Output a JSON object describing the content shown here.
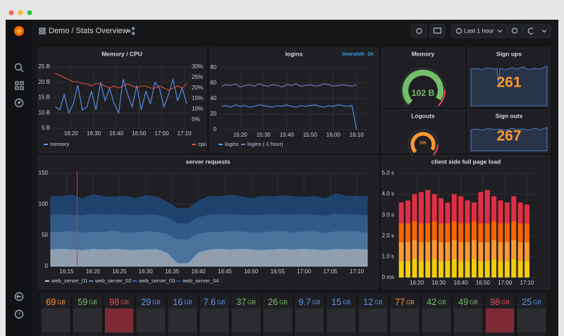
{
  "header": {
    "title": "Demo / Stats Overview",
    "time_range": "Last 1 hour"
  },
  "panels": {
    "memory_cpu": {
      "type": "line",
      "title": "Memory / CPU",
      "grid": true,
      "xlim": [
        972,
        1032
      ],
      "xticks": [
        {
          "value": 980,
          "label": "16:20"
        },
        {
          "value": 990,
          "label": "16:30"
        },
        {
          "value": 1000,
          "label": "16:40"
        },
        {
          "value": 1010,
          "label": "16:50"
        },
        {
          "value": 1020,
          "label": "17:00"
        },
        {
          "value": 1030,
          "label": "17:10"
        }
      ],
      "ylim": [
        5,
        25
      ],
      "yticks": [
        {
          "value": 5,
          "label": "5 B"
        },
        {
          "value": 10,
          "label": "10 B"
        },
        {
          "value": 15,
          "label": "15 B"
        },
        {
          "value": 20,
          "label": "20 B"
        },
        {
          "value": 25,
          "label": "25 B"
        }
      ],
      "y2lim": [
        1,
        30
      ],
      "y2ticks": [
        {
          "value": 5,
          "label": "5%"
        },
        {
          "value": 10,
          "label": "10%"
        },
        {
          "value": 15,
          "label": "15%"
        },
        {
          "value": 20,
          "label": "20%"
        },
        {
          "value": 25,
          "label": "25%"
        },
        {
          "value": 30,
          "label": "30%"
        }
      ],
      "x": [
        973,
        975,
        977,
        979,
        981,
        983,
        985,
        987,
        989,
        991,
        993,
        995,
        997,
        999,
        1001,
        1003,
        1005,
        1007,
        1009,
        1011,
        1013,
        1015,
        1017,
        1019,
        1021,
        1023,
        1025,
        1027,
        1029,
        1031
      ],
      "series": [
        {
          "name": "memory",
          "color": "#5794F2",
          "values": [
            12,
            11,
            16,
            10,
            13,
            19,
            11,
            12,
            17,
            11,
            20,
            14,
            18,
            13,
            10,
            21,
            16,
            12,
            19,
            11,
            17,
            13,
            20,
            18,
            12,
            16,
            21,
            14,
            18,
            13
          ]
        },
        {
          "name": "cpu",
          "color": "#E24D42",
          "axis": "y2",
          "values": [
            27,
            26,
            25,
            24,
            23,
            23,
            22,
            22,
            21,
            22,
            22,
            21,
            20,
            21,
            20,
            21,
            22,
            21,
            20,
            21,
            21,
            20,
            20,
            21,
            20,
            19,
            20,
            21,
            20,
            22
          ]
        }
      ]
    },
    "logins": {
      "type": "line",
      "title": "logins",
      "subtitle": "timeshift -1h",
      "grid": true,
      "xlim": [
        911,
        974
      ],
      "xticks": [
        {
          "value": 920,
          "label": "15:20"
        },
        {
          "value": 930,
          "label": "15:30"
        },
        {
          "value": 940,
          "label": "15:40"
        },
        {
          "value": 950,
          "label": "15:50"
        },
        {
          "value": 960,
          "label": "16:00"
        },
        {
          "value": 970,
          "label": "16:10"
        }
      ],
      "ylim": [
        0,
        80
      ],
      "yticks": [
        0,
        20,
        40,
        60,
        80
      ],
      "x": [
        912,
        914,
        916,
        918,
        920,
        922,
        924,
        926,
        928,
        930,
        932,
        934,
        936,
        938,
        940,
        942,
        944,
        946,
        948,
        950,
        952,
        954,
        956,
        958,
        960,
        962,
        964,
        966,
        968,
        970
      ],
      "series": [
        {
          "name": "logins",
          "color": "#5794F2",
          "values": [
            30,
            31,
            29,
            32,
            30,
            31,
            29,
            30,
            32,
            31,
            30,
            29,
            31,
            30,
            32,
            30,
            29,
            31,
            30,
            31,
            32,
            30,
            29,
            31,
            30,
            32,
            31,
            30,
            31,
            0
          ]
        },
        {
          "name": "logins (-1 hour)",
          "color": "#8F6FC4",
          "values": [
            56,
            58,
            57,
            59,
            55,
            57,
            58,
            56,
            59,
            57,
            56,
            58,
            57,
            55,
            58,
            57,
            59,
            56,
            57,
            58,
            56,
            57,
            59,
            58,
            56,
            57,
            58,
            57,
            56,
            58
          ]
        }
      ]
    },
    "memory": {
      "type": "gauge",
      "title": "Memory",
      "value": 102,
      "value_label": "102 B",
      "color": "#73BF69"
    },
    "sign_ups": {
      "type": "stat",
      "title": "Sign ups",
      "value": 261,
      "color": "#FF9830"
    },
    "logouts": {
      "type": "gauge",
      "title": "Logouts",
      "value": 205,
      "value_label": "205",
      "color": "#FF9830"
    },
    "sign_outs": {
      "type": "stat",
      "title": "Sign outs",
      "value": 267,
      "color": "#FF9830"
    },
    "server_requests": {
      "type": "area_stacked",
      "title": "server requests",
      "grid": true,
      "xlim": [
        972,
        1032
      ],
      "xticks": [
        {
          "value": 975,
          "label": "16:15"
        },
        {
          "value": 980,
          "label": "16:20"
        },
        {
          "value": 985,
          "label": "16:25"
        },
        {
          "value": 990,
          "label": "16:30"
        },
        {
          "value": 995,
          "label": "16:35"
        },
        {
          "value": 1000,
          "label": "16:40"
        },
        {
          "value": 1005,
          "label": "16:45"
        },
        {
          "value": 1010,
          "label": "16:50"
        },
        {
          "value": 1015,
          "label": "16:55"
        },
        {
          "value": 1020,
          "label": "17:00"
        },
        {
          "value": 1025,
          "label": "17:05"
        },
        {
          "value": 1030,
          "label": "17:10"
        }
      ],
      "ylim": [
        0,
        150
      ],
      "yticks": [
        0,
        50,
        100,
        150
      ],
      "annotations": [
        {
          "x": 977,
          "color": "#E02F44"
        }
      ],
      "x": [
        972,
        974,
        976,
        978,
        980,
        982,
        984,
        986,
        988,
        990,
        992,
        994,
        996,
        998,
        1000,
        1002,
        1004,
        1006,
        1008,
        1010,
        1012,
        1014,
        1016,
        1018,
        1020,
        1022,
        1024,
        1026,
        1028,
        1030,
        1032
      ],
      "series": [
        {
          "name": "web_server_01",
          "color": "#B7C9DD",
          "values": [
            27,
            28,
            27,
            26,
            28,
            27,
            28,
            27,
            26,
            27,
            28,
            22,
            5,
            5,
            22,
            27,
            28,
            27,
            28,
            27,
            26,
            27,
            28,
            27,
            28,
            27,
            26,
            28,
            27,
            28,
            27
          ]
        },
        {
          "name": "web_server_02",
          "color": "#5A8FC4",
          "values": [
            28,
            27,
            29,
            28,
            27,
            28,
            29,
            27,
            28,
            29,
            27,
            30,
            38,
            38,
            30,
            28,
            27,
            29,
            28,
            27,
            28,
            29,
            28,
            27,
            28,
            29,
            27,
            28,
            29,
            28,
            27
          ]
        },
        {
          "name": "web_server_03",
          "color": "#3A6FA8",
          "values": [
            28,
            29,
            27,
            28,
            30,
            28,
            27,
            29,
            28,
            27,
            28,
            27,
            26,
            26,
            27,
            28,
            29,
            28,
            27,
            28,
            29,
            28,
            27,
            29,
            28,
            27,
            28,
            29,
            28,
            27,
            28
          ]
        },
        {
          "name": "web_server_04",
          "color": "#1F4F85",
          "values": [
            30,
            28,
            32,
            27,
            31,
            29,
            28,
            30,
            27,
            31,
            29,
            25,
            24,
            24,
            26,
            30,
            28,
            31,
            29,
            27,
            30,
            28,
            31,
            29,
            27,
            30,
            28,
            32,
            29,
            30,
            31
          ]
        }
      ]
    },
    "page_load": {
      "type": "bar_stacked",
      "title": "client side full page load",
      "grid": true,
      "xlim": [
        971,
        1034
      ],
      "xticks": [
        {
          "value": 980,
          "label": "16:20"
        },
        {
          "value": 990,
          "label": "16:30"
        },
        {
          "value": 1000,
          "label": "16:40"
        },
        {
          "value": 1010,
          "label": "16:50"
        },
        {
          "value": 1020,
          "label": "17:00"
        },
        {
          "value": 1030,
          "label": "17:10"
        }
      ],
      "ylim": [
        0,
        5
      ],
      "yticks": [
        {
          "value": 0,
          "label": "0 ms"
        },
        {
          "value": 1,
          "label": "1.0 s"
        },
        {
          "value": 2,
          "label": "2.0 s"
        },
        {
          "value": 3,
          "label": "3.0 s"
        },
        {
          "value": 4,
          "label": "4.0 s"
        },
        {
          "value": 5,
          "label": "5.0 s"
        }
      ],
      "x": [
        973,
        976,
        979,
        982,
        985,
        988,
        991,
        994,
        997,
        1000,
        1003,
        1006,
        1009,
        1012,
        1015,
        1018,
        1021,
        1024,
        1027,
        1030
      ],
      "series": [
        {
          "color": "#F2CC0C",
          "values": [
            0.8,
            0.8,
            0.9,
            0.8,
            0.8,
            0.9,
            0.8,
            0.8,
            0.9,
            0.8,
            0.8,
            0.9,
            0.8,
            0.8,
            0.9,
            0.8,
            0.8,
            0.9,
            0.8,
            0.8
          ]
        },
        {
          "color": "#FF9830",
          "values": [
            0.9,
            0.9,
            0.9,
            0.9,
            0.9,
            0.9,
            0.9,
            0.9,
            0.9,
            0.9,
            0.9,
            0.9,
            0.9,
            0.9,
            0.9,
            0.9,
            0.9,
            0.9,
            0.9,
            0.9
          ]
        },
        {
          "color": "#FA6400",
          "values": [
            0.9,
            0.9,
            0.9,
            0.9,
            0.9,
            0.9,
            0.9,
            0.9,
            0.9,
            0.9,
            0.9,
            0.9,
            0.9,
            0.9,
            0.9,
            0.9,
            0.9,
            0.9,
            0.9,
            0.9
          ]
        },
        {
          "color": "#E02F44",
          "values": [
            1.0,
            1.1,
            1.3,
            1.5,
            1.6,
            1.3,
            1.2,
            1.0,
            1.3,
            1.3,
            1.1,
            0.9,
            1.5,
            1.6,
            1.2,
            1.1,
            1.0,
            1.2,
            1.0,
            0.9
          ]
        }
      ]
    }
  },
  "stats": [
    {
      "value": 69,
      "unit": "GB",
      "color": "#FF9830",
      "background": "#2b2c30"
    },
    {
      "value": 59,
      "unit": "GB",
      "color": "#73BF69",
      "background": "#2b2c30"
    },
    {
      "value": 98,
      "unit": "GB",
      "color": "#F2495C",
      "background": "#7e2a36"
    },
    {
      "value": 29,
      "unit": "GB",
      "color": "#5794F2",
      "background": "#2b2c30"
    },
    {
      "value": 16,
      "unit": "GB",
      "color": "#5794F2",
      "background": "#2b2c30"
    },
    {
      "value": 7.6,
      "unit": "GB",
      "color": "#5794F2",
      "background": "#2b2c30"
    },
    {
      "value": 37,
      "unit": "GB",
      "color": "#73BF69",
      "background": "#2b2c30"
    },
    {
      "value": 26,
      "unit": "GB",
      "color": "#73BF69",
      "background": "#2b2c30"
    },
    {
      "value": 9.7,
      "unit": "GB",
      "color": "#5794F2",
      "background": "#2b2c30"
    },
    {
      "value": 15,
      "unit": "GB",
      "color": "#5794F2",
      "background": "#2b2c30"
    },
    {
      "value": 12,
      "unit": "GB",
      "color": "#5794F2",
      "background": "#2b2c30"
    },
    {
      "value": 77,
      "unit": "GB",
      "color": "#FF9830",
      "background": "#2b2c30"
    },
    {
      "value": 42,
      "unit": "GB",
      "color": "#73BF69",
      "background": "#2b2c30"
    },
    {
      "value": 49,
      "unit": "GB",
      "color": "#73BF69",
      "background": "#2b2c30"
    },
    {
      "value": 98,
      "unit": "GB",
      "color": "#F2495C",
      "background": "#7e2a36"
    },
    {
      "value": 25,
      "unit": "GB",
      "color": "#5794F2",
      "background": "#2b2c30"
    }
  ]
}
